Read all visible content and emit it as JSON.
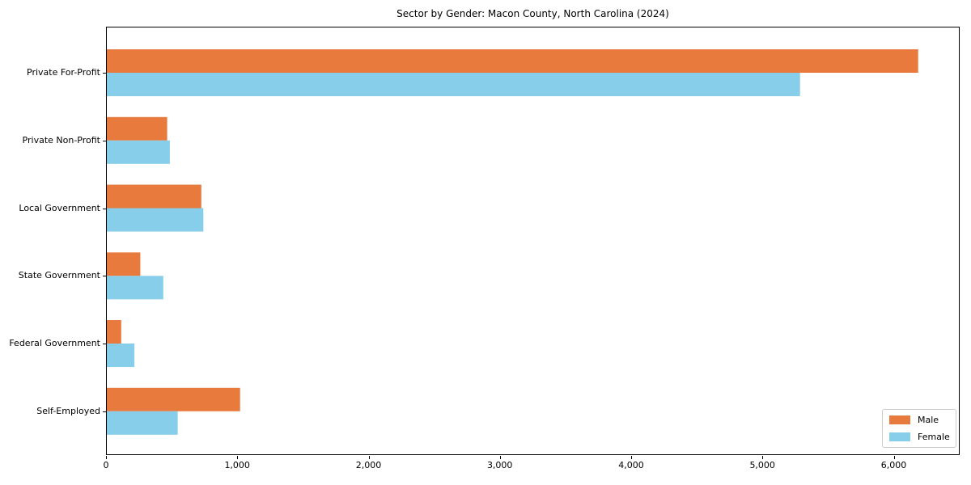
{
  "chart_data": {
    "type": "bar",
    "orientation": "horizontal",
    "title": "Sector by Gender: Macon County, North Carolina (2024)",
    "categories": [
      "Private For-Profit",
      "Private Non-Profit",
      "Local Government",
      "State Government",
      "Federal Government",
      "Self-Employed"
    ],
    "series": [
      {
        "name": "Male",
        "color": "#E87A3E",
        "values": [
          6180,
          460,
          720,
          255,
          110,
          1015
        ]
      },
      {
        "name": "Female",
        "color": "#87CEEB",
        "values": [
          5280,
          480,
          735,
          430,
          210,
          540
        ]
      }
    ],
    "xlabel": "",
    "ylabel": "",
    "xlim": [
      0,
      6490
    ],
    "x_tick_values": [
      0,
      1000,
      2000,
      3000,
      4000,
      5000,
      6000
    ],
    "x_tick_labels": [
      "0",
      "1,000",
      "2,000",
      "3,000",
      "4,000",
      "5,000",
      "6,000"
    ],
    "legend": {
      "position": "lower right",
      "entries": [
        "Male",
        "Female"
      ]
    },
    "grid": false
  }
}
